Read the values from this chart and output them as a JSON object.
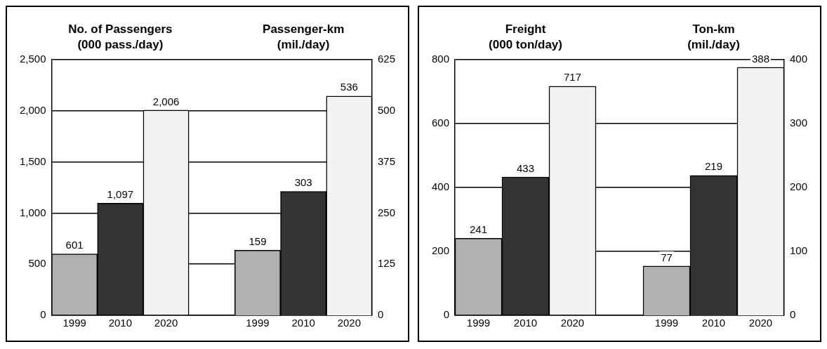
{
  "chart_data": [
    {
      "type": "bar",
      "ylabel": "No. of Passengers\n(000 pass./day)",
      "y2label": "Passenger-km\n(mil./day)",
      "categories": [
        "1999",
        "2010",
        "2020",
        null,
        "1999",
        "2010",
        "2020"
      ],
      "series": [
        {
          "axis": "y",
          "values": [
            601,
            1097,
            2006,
            null,
            null,
            null,
            null
          ],
          "colors": [
            "#b1b1b1",
            "#333333",
            "#f2f2f2",
            null,
            null,
            null,
            null
          ],
          "value_labels": [
            "601",
            "1,097",
            "2,006",
            null,
            null,
            null,
            null
          ]
        },
        {
          "axis": "y2",
          "values": [
            null,
            null,
            null,
            null,
            159,
            303,
            536
          ],
          "colors": [
            null,
            null,
            null,
            null,
            "#b1b1b1",
            "#333333",
            "#f2f2f2"
          ],
          "value_labels": [
            null,
            null,
            null,
            null,
            "159",
            "303",
            "536"
          ]
        }
      ],
      "ylim": [
        0,
        2500
      ],
      "yticks": [
        0,
        {
          "value": 500,
          "label": "500"
        },
        {
          "value": 1000,
          "label": "1,000"
        },
        {
          "value": 1500,
          "label": "1,500"
        },
        {
          "value": 2000,
          "label": "2,000"
        },
        {
          "value": 2500,
          "label": "2,500"
        }
      ],
      "y2lim": [
        0,
        625
      ],
      "y2ticks": [
        0,
        125,
        250,
        375,
        500,
        625
      ],
      "grid": "y"
    },
    {
      "type": "bar",
      "ylabel": "Freight\n(000 ton/day)",
      "y2label": "Ton-km\n(mil./day)",
      "categories": [
        "1999",
        "2010",
        "2020",
        null,
        "1999",
        "2010",
        "2020"
      ],
      "series": [
        {
          "axis": "y",
          "values": [
            241,
            433,
            717,
            null,
            null,
            null,
            null
          ],
          "colors": [
            "#b1b1b1",
            "#333333",
            "#f2f2f2",
            null,
            null,
            null,
            null
          ]
        },
        {
          "axis": "y2",
          "values": [
            null,
            null,
            null,
            null,
            77,
            219,
            388
          ],
          "colors": [
            null,
            null,
            null,
            null,
            "#b1b1b1",
            "#333333",
            "#f2f2f2"
          ]
        }
      ],
      "ylim": [
        0,
        800
      ],
      "yticks": [
        0,
        200,
        400,
        600,
        800
      ],
      "y2lim": [
        0,
        400
      ],
      "y2ticks": [
        0,
        100,
        200,
        300,
        400
      ],
      "grid": "y",
      "data_labels": true
    }
  ]
}
